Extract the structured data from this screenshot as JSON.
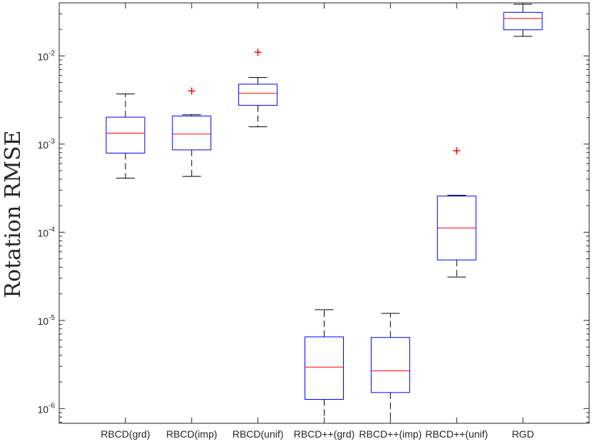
{
  "chart_data": {
    "type": "box",
    "title": "",
    "xlabel": "",
    "ylabel": "Rotation RMSE",
    "yscale": "log",
    "ylim": [
      6.8e-07,
      0.04
    ],
    "grid": false,
    "legend": "none",
    "yticks": [
      {
        "value": 1e-06,
        "base": "10",
        "exp": "-6"
      },
      {
        "value": 1e-05,
        "base": "10",
        "exp": "-5"
      },
      {
        "value": 0.0001,
        "base": "10",
        "exp": "-4"
      },
      {
        "value": 0.001,
        "base": "10",
        "exp": "-3"
      },
      {
        "value": 0.01,
        "base": "10",
        "exp": "-2"
      }
    ],
    "categories": [
      "RBCD(grd)",
      "RBCD(imp)",
      "RBCD(unif)",
      "RBCD++(grd)",
      "RBCD++(imp)",
      "RBCD++(unif)",
      "RGD"
    ],
    "boxes": [
      {
        "whisker_low": 0.00041,
        "q1": 0.00079,
        "median": 0.00133,
        "q3": 0.00202,
        "whisker_high": 0.0037,
        "outliers": []
      },
      {
        "whisker_low": 0.00043,
        "q1": 0.00086,
        "median": 0.0013,
        "q3": 0.00208,
        "whisker_high": 0.00215,
        "outliers": [
          0.004
        ]
      },
      {
        "whisker_low": 0.00157,
        "q1": 0.00275,
        "median": 0.00376,
        "q3": 0.00478,
        "whisker_high": 0.0057,
        "outliers": [
          0.011
        ]
      },
      {
        "whisker_low": 6.5e-07,
        "q1": 1.27e-06,
        "median": 2.95e-06,
        "q3": 6.5e-06,
        "whisker_high": 1.32e-05,
        "outliers": []
      },
      {
        "whisker_low": 6.5e-07,
        "q1": 1.52e-06,
        "median": 2.68e-06,
        "q3": 6.4e-06,
        "whisker_high": 1.2e-05,
        "outliers": []
      },
      {
        "whisker_low": 3.1e-05,
        "q1": 4.85e-05,
        "median": 0.000112,
        "q3": 0.000257,
        "whisker_high": 0.000263,
        "outliers": [
          0.00084
        ]
      },
      {
        "whisker_low": 0.0167,
        "q1": 0.0198,
        "median": 0.0266,
        "q3": 0.0312,
        "whisker_high": 0.0385,
        "outliers": []
      }
    ],
    "colors": {
      "box": "#0000ff",
      "median": "#ff0000",
      "whisker": "#000000",
      "outlier": "#ff0000",
      "axis": "#262626"
    }
  }
}
